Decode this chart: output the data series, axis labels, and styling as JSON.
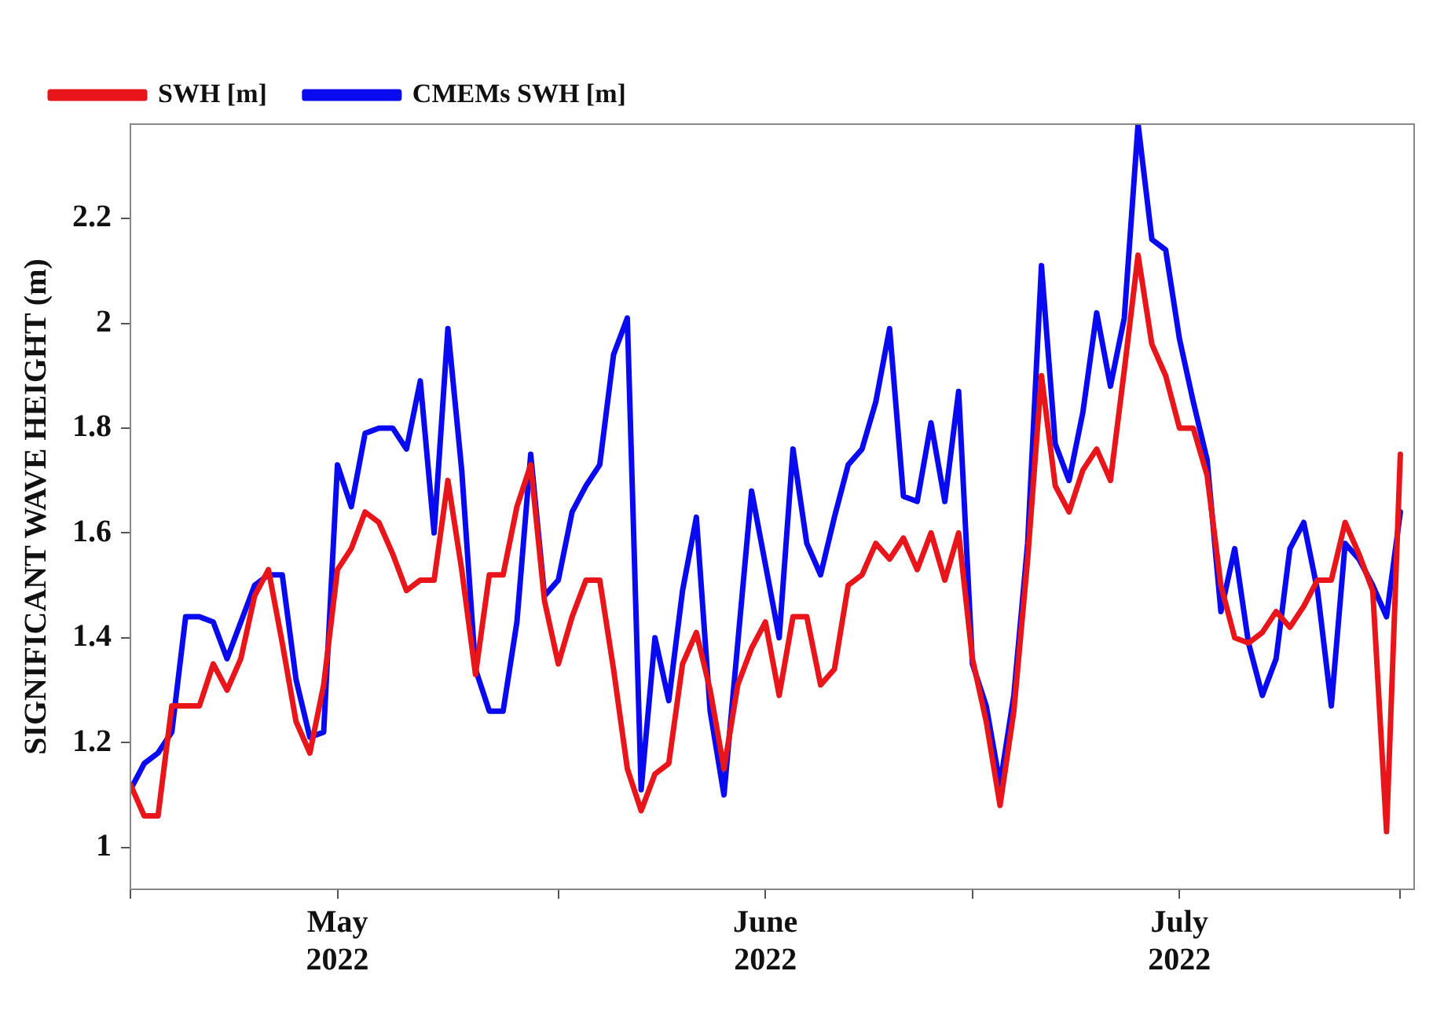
{
  "chart_data": {
    "type": "line",
    "ylabel": "SIGNIFICANT WAVE HEIGHT (m)",
    "legend": "top left",
    "grid": false,
    "marker": "none",
    "line_style": "solid",
    "x": [
      "2022-05-01",
      "2022-05-02",
      "2022-05-03",
      "2022-05-04",
      "2022-05-05",
      "2022-05-06",
      "2022-05-07",
      "2022-05-08",
      "2022-05-09",
      "2022-05-10",
      "2022-05-11",
      "2022-05-12",
      "2022-05-13",
      "2022-05-14",
      "2022-05-15",
      "2022-05-16",
      "2022-05-17",
      "2022-05-18",
      "2022-05-19",
      "2022-05-20",
      "2022-05-21",
      "2022-05-22",
      "2022-05-23",
      "2022-05-24",
      "2022-05-25",
      "2022-05-26",
      "2022-05-27",
      "2022-05-28",
      "2022-05-29",
      "2022-05-30",
      "2022-05-31",
      "2022-06-01",
      "2022-06-02",
      "2022-06-03",
      "2022-06-04",
      "2022-06-05",
      "2022-06-06",
      "2022-06-07",
      "2022-06-08",
      "2022-06-09",
      "2022-06-10",
      "2022-06-11",
      "2022-06-12",
      "2022-06-13",
      "2022-06-14",
      "2022-06-15",
      "2022-06-16",
      "2022-06-17",
      "2022-06-18",
      "2022-06-19",
      "2022-06-20",
      "2022-06-21",
      "2022-06-22",
      "2022-06-23",
      "2022-06-24",
      "2022-06-25",
      "2022-06-26",
      "2022-06-27",
      "2022-06-28",
      "2022-06-29",
      "2022-06-30",
      "2022-07-01",
      "2022-07-02",
      "2022-07-03",
      "2022-07-04",
      "2022-07-05",
      "2022-07-06",
      "2022-07-07",
      "2022-07-08",
      "2022-07-09",
      "2022-07-10",
      "2022-07-11",
      "2022-07-12",
      "2022-07-13",
      "2022-07-14",
      "2022-07-15",
      "2022-07-16",
      "2022-07-17",
      "2022-07-18",
      "2022-07-19",
      "2022-07-20",
      "2022-07-21",
      "2022-07-22",
      "2022-07-23",
      "2022-07-24",
      "2022-07-25",
      "2022-07-26",
      "2022-07-27",
      "2022-07-28",
      "2022-07-29",
      "2022-07-30",
      "2022-07-31",
      "2022-08-01"
    ],
    "series": [
      {
        "name": "SWH [m]",
        "color": "#e8151b",
        "values": [
          1.12,
          1.06,
          1.06,
          1.27,
          1.27,
          1.27,
          1.35,
          1.3,
          1.36,
          1.48,
          1.53,
          1.39,
          1.24,
          1.18,
          1.31,
          1.53,
          1.57,
          1.64,
          1.62,
          1.56,
          1.49,
          1.51,
          1.51,
          1.7,
          1.53,
          1.33,
          1.52,
          1.52,
          1.65,
          1.73,
          1.47,
          1.35,
          1.44,
          1.51,
          1.51,
          1.34,
          1.15,
          1.07,
          1.14,
          1.16,
          1.35,
          1.41,
          1.3,
          1.15,
          1.31,
          1.38,
          1.43,
          1.29,
          1.44,
          1.44,
          1.31,
          1.34,
          1.5,
          1.52,
          1.58,
          1.55,
          1.59,
          1.53,
          1.6,
          1.51,
          1.6,
          1.36,
          1.24,
          1.08,
          1.26,
          1.55,
          1.9,
          1.69,
          1.64,
          1.72,
          1.76,
          1.7,
          1.91,
          2.13,
          1.96,
          1.9,
          1.8,
          1.8,
          1.71,
          1.5,
          1.4,
          1.39,
          1.41,
          1.45,
          1.42,
          1.46,
          1.51,
          1.51,
          1.62,
          1.56,
          1.49,
          1.03,
          1.75
        ]
      },
      {
        "name": "CMEMs SWH [m]",
        "color": "#0a0af0",
        "values": [
          1.11,
          1.16,
          1.18,
          1.22,
          1.44,
          1.44,
          1.43,
          1.36,
          1.43,
          1.5,
          1.52,
          1.52,
          1.32,
          1.21,
          1.22,
          1.73,
          1.65,
          1.79,
          1.8,
          1.8,
          1.76,
          1.89,
          1.6,
          1.99,
          1.72,
          1.34,
          1.26,
          1.26,
          1.43,
          1.75,
          1.48,
          1.51,
          1.64,
          1.69,
          1.73,
          1.94,
          2.01,
          1.11,
          1.4,
          1.28,
          1.49,
          1.63,
          1.26,
          1.1,
          1.39,
          1.68,
          1.54,
          1.4,
          1.76,
          1.58,
          1.52,
          1.63,
          1.73,
          1.76,
          1.85,
          1.99,
          1.67,
          1.66,
          1.81,
          1.66,
          1.87,
          1.35,
          1.27,
          1.12,
          1.29,
          1.58,
          2.11,
          1.77,
          1.7,
          1.83,
          2.02,
          1.88,
          2.01,
          2.38,
          2.16,
          2.14,
          1.97,
          1.85,
          1.74,
          1.45,
          1.57,
          1.39,
          1.29,
          1.36,
          1.57,
          1.62,
          1.49,
          1.27,
          1.58,
          1.55,
          1.5,
          1.44,
          1.64
        ]
      }
    ],
    "ylim": [
      0.92,
      2.38
    ],
    "yticks": [
      1.0,
      1.2,
      1.4,
      1.6,
      1.8,
      2.0,
      2.2
    ],
    "xlim": [
      "2022-05-01",
      "2022-08-02"
    ],
    "xticks": [
      {
        "value": "2022-05-01",
        "label": null
      },
      {
        "value": "2022-05-16",
        "label": "May 2022"
      },
      {
        "value": "2022-06-01",
        "label": null
      },
      {
        "value": "2022-06-16",
        "label": "June 2022"
      },
      {
        "value": "2022-07-01",
        "label": null
      },
      {
        "value": "2022-07-16",
        "label": "July 2022"
      },
      {
        "value": "2022-08-01",
        "label": null
      }
    ]
  }
}
